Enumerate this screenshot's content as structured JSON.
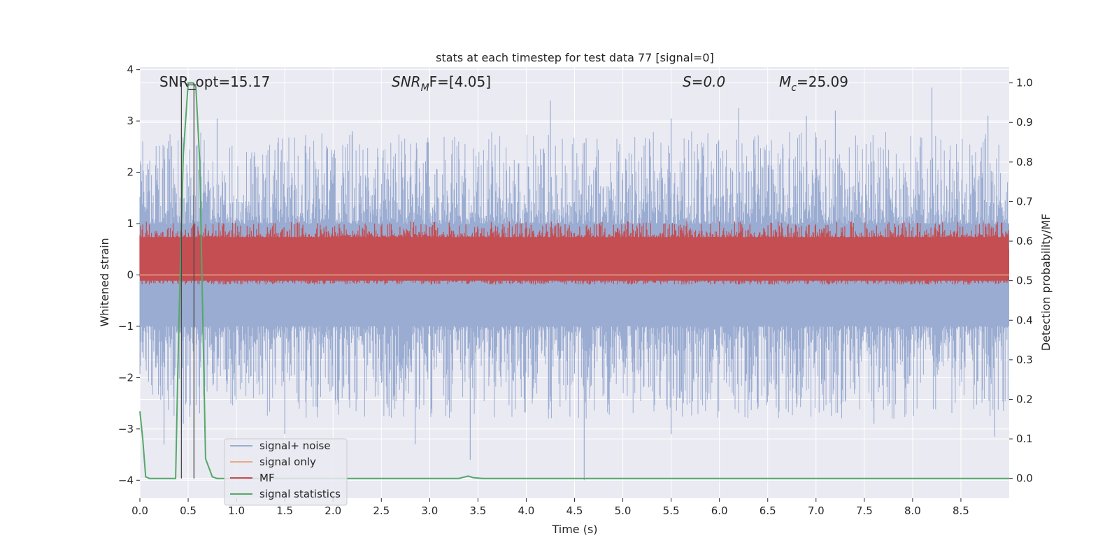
{
  "chart_data": {
    "type": "line",
    "title": "stats at each timestep for test data 77 [signal=0]",
    "xlabel": "Time (s)",
    "ylabel": "Whitened strain",
    "y2label": "Detection probability/MF",
    "xlim": [
      0.0,
      9.0
    ],
    "ylim": [
      -4.35,
      4.05
    ],
    "y2lim": [
      -0.05,
      1.04
    ],
    "xticks": [
      "0.0",
      "0.5",
      "1.0",
      "1.5",
      "2.0",
      "2.5",
      "3.0",
      "3.5",
      "4.0",
      "4.5",
      "5.0",
      "5.5",
      "6.0",
      "6.5",
      "7.0",
      "7.5",
      "8.0",
      "8.5"
    ],
    "yticks": [
      "4",
      "3",
      "2",
      "1",
      "0",
      "−1",
      "−2",
      "−3",
      "−4"
    ],
    "y2ticks": [
      "1.0",
      "0.9",
      "0.8",
      "0.7",
      "0.6",
      "0.5",
      "0.4",
      "0.3",
      "0.2",
      "0.1",
      "0.0"
    ],
    "grid": true,
    "legend_position": "lower-left",
    "annotations": {
      "snr_opt": "SNR_opt=15.17",
      "snr_mf_main": "SNR",
      "snr_mf_sub": "M",
      "snr_mf_rest": "F=[4.05]",
      "s": "S=0.0",
      "mc_main": "M",
      "mc_sub": "c",
      "mc_rest": "=25.09"
    },
    "vlines": [
      0.43,
      0.56
    ],
    "series": [
      {
        "name": "signal+ noise",
        "color": "#9aacd1",
        "axis": "left",
        "kind": "noise",
        "band": [
          -1.0,
          1.0
        ],
        "peaks": [
          {
            "x": 0.45,
            "y": -2.9
          },
          {
            "x": 0.25,
            "y": -3.3
          },
          {
            "x": 0.8,
            "y": 3.05
          },
          {
            "x": 2.85,
            "y": -3.3
          },
          {
            "x": 3.42,
            "y": -3.6
          },
          {
            "x": 4.25,
            "y": 3.4
          },
          {
            "x": 4.6,
            "y": -4.0
          },
          {
            "x": 5.5,
            "y": -3.1
          },
          {
            "x": 5.5,
            "y": 3.05
          },
          {
            "x": 6.2,
            "y": 3.25
          },
          {
            "x": 6.9,
            "y": 3.1
          },
          {
            "x": 7.2,
            "y": 3.2
          },
          {
            "x": 8.2,
            "y": 3.65
          },
          {
            "x": 8.78,
            "y": 3.1
          },
          {
            "x": 8.85,
            "y": -3.15
          },
          {
            "x": 1.5,
            "y": -3.1
          },
          {
            "x": 2.2,
            "y": 2.8
          },
          {
            "x": 7.6,
            "y": -2.9
          }
        ]
      },
      {
        "name": "signal only",
        "color": "#e8a88b",
        "axis": "left",
        "kind": "flat",
        "value": 0.0
      },
      {
        "name": "MF",
        "color": "#c44e52",
        "axis": "right",
        "kind": "mf",
        "band": [
          0.49,
          0.61
        ],
        "max": 0.65
      },
      {
        "name": "signal statistics",
        "color": "#55a868",
        "axis": "right",
        "kind": "line",
        "points": [
          [
            0.0,
            0.17
          ],
          [
            0.03,
            0.1
          ],
          [
            0.06,
            0.004
          ],
          [
            0.1,
            0.0
          ],
          [
            0.15,
            0.0
          ],
          [
            0.2,
            0.0
          ],
          [
            0.25,
            0.0
          ],
          [
            0.3,
            0.0
          ],
          [
            0.37,
            0.0
          ],
          [
            0.4,
            0.35
          ],
          [
            0.45,
            0.82
          ],
          [
            0.5,
            1.0
          ],
          [
            0.55,
            1.0
          ],
          [
            0.58,
            0.99
          ],
          [
            0.62,
            0.8
          ],
          [
            0.68,
            0.05
          ],
          [
            0.75,
            0.004
          ],
          [
            0.8,
            0.0
          ],
          [
            1.0,
            0.0
          ],
          [
            1.5,
            0.0
          ],
          [
            2.0,
            0.0
          ],
          [
            2.5,
            0.0
          ],
          [
            3.0,
            0.0
          ],
          [
            3.3,
            0.0
          ],
          [
            3.4,
            0.006
          ],
          [
            3.45,
            0.002
          ],
          [
            3.55,
            0.0
          ],
          [
            4.0,
            0.0
          ],
          [
            5.0,
            0.0
          ],
          [
            6.0,
            0.0
          ],
          [
            7.0,
            0.0
          ],
          [
            8.0,
            0.0
          ],
          [
            9.0,
            0.0
          ]
        ]
      }
    ]
  }
}
